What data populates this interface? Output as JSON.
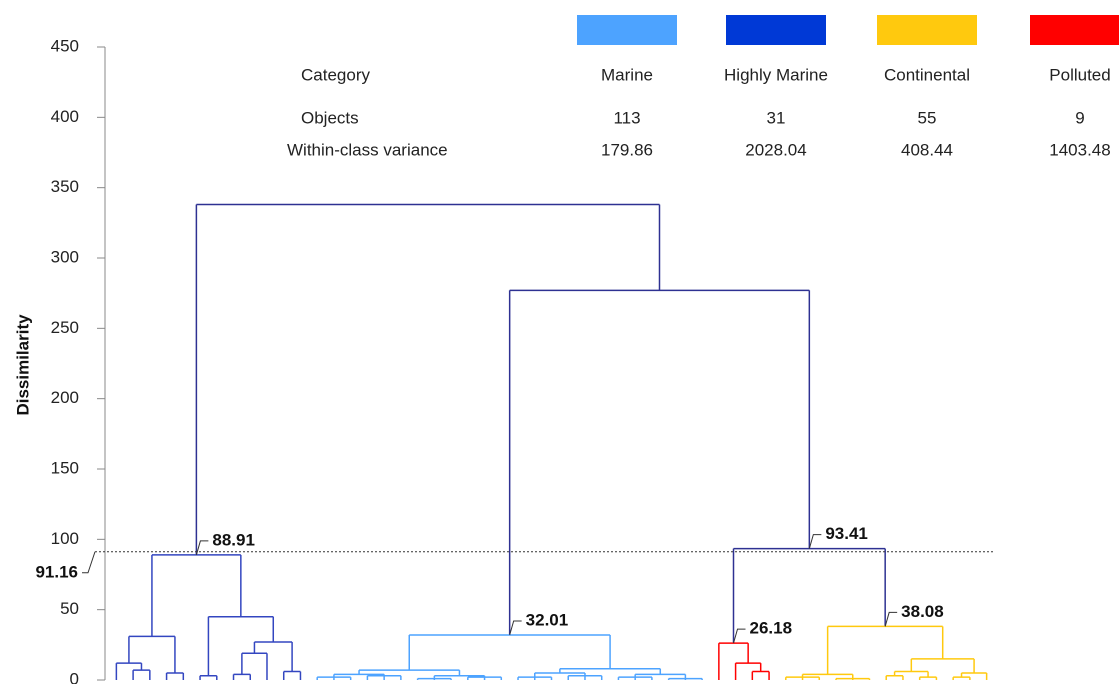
{
  "chart_data": {
    "type": "dendrogram",
    "y_label": "Dissimilarity",
    "ylim": [
      0,
      450
    ],
    "yticks": [
      0,
      50,
      100,
      150,
      200,
      250,
      300,
      350,
      400,
      450
    ],
    "cut": 91.16,
    "legend_table": {
      "header": "Category",
      "rows": [
        "Objects",
        "Within-class variance"
      ]
    },
    "classes": [
      {
        "name": "Marine",
        "color": "#4da3ff",
        "objects": "113",
        "variance": "179.86"
      },
      {
        "name": "Highly Marine",
        "color": "#0039d6",
        "objects": "31",
        "variance": "2028.04"
      },
      {
        "name": "Continental",
        "color": "#ffc90e",
        "objects": "55",
        "variance": "408.44"
      },
      {
        "name": "Polluted",
        "color": "#ff0000",
        "objects": "9",
        "variance": "1403.48"
      }
    ],
    "tree": {
      "height": 338,
      "color": "#2e3192",
      "children": [
        {
          "height": 88.91,
          "color": "#3346c0",
          "label": true,
          "children": [
            {
              "height": 31,
              "children": [
                {
                  "height": 12,
                  "children": [
                    {
                      "height": 0
                    },
                    {
                      "height": 7,
                      "children": [
                        {
                          "height": 0
                        },
                        {
                          "height": 0
                        }
                      ]
                    }
                  ]
                },
                {
                  "height": 5,
                  "children": [
                    {
                      "height": 0
                    },
                    {
                      "height": 0
                    }
                  ]
                }
              ]
            },
            {
              "height": 45,
              "children": [
                {
                  "height": 3,
                  "children": [
                    {
                      "height": 0
                    },
                    {
                      "height": 0
                    }
                  ]
                },
                {
                  "height": 27,
                  "children": [
                    {
                      "height": 19,
                      "children": [
                        {
                          "height": 4,
                          "children": [
                            {
                              "height": 0
                            },
                            {
                              "height": 0
                            }
                          ]
                        },
                        {
                          "height": 0
                        }
                      ]
                    },
                    {
                      "height": 6,
                      "children": [
                        {
                          "height": 0
                        },
                        {
                          "height": 0
                        }
                      ]
                    }
                  ]
                }
              ]
            }
          ]
        },
        {
          "height": 277,
          "children": [
            {
              "height": 32.01,
              "color": "#4da3ff",
              "label": true,
              "children": [
                {
                  "height": 7,
                  "children": [
                    {
                      "height": 4,
                      "children": [
                        {
                          "height": 2,
                          "children": [
                            {
                              "height": 0
                            },
                            {
                              "height": 0
                            },
                            {
                              "height": 0
                            }
                          ]
                        },
                        {
                          "height": 3,
                          "children": [
                            {
                              "height": 0
                            },
                            {
                              "height": 0
                            },
                            {
                              "height": 0
                            }
                          ]
                        }
                      ]
                    },
                    {
                      "height": 3,
                      "children": [
                        {
                          "height": 1,
                          "children": [
                            {
                              "height": 0
                            },
                            {
                              "height": 0
                            },
                            {
                              "height": 0
                            }
                          ]
                        },
                        {
                          "height": 2,
                          "children": [
                            {
                              "height": 0
                            },
                            {
                              "height": 0
                            },
                            {
                              "height": 0
                            }
                          ]
                        }
                      ]
                    }
                  ]
                },
                {
                  "height": 8,
                  "children": [
                    {
                      "height": 5,
                      "children": [
                        {
                          "height": 2,
                          "children": [
                            {
                              "height": 0
                            },
                            {
                              "height": 0
                            },
                            {
                              "height": 0
                            }
                          ]
                        },
                        {
                          "height": 3,
                          "children": [
                            {
                              "height": 0
                            },
                            {
                              "height": 0
                            },
                            {
                              "height": 0
                            }
                          ]
                        }
                      ]
                    },
                    {
                      "height": 4,
                      "children": [
                        {
                          "height": 2,
                          "children": [
                            {
                              "height": 0
                            },
                            {
                              "height": 0
                            },
                            {
                              "height": 0
                            }
                          ]
                        },
                        {
                          "height": 1,
                          "children": [
                            {
                              "height": 0
                            },
                            {
                              "height": 0
                            },
                            {
                              "height": 0
                            }
                          ]
                        }
                      ]
                    }
                  ]
                }
              ]
            },
            {
              "height": 93.41,
              "label": true,
              "children": [
                {
                  "height": 26.18,
                  "color": "#ff0000",
                  "label": true,
                  "children": [
                    {
                      "height": 0
                    },
                    {
                      "height": 12,
                      "children": [
                        {
                          "height": 0
                        },
                        {
                          "height": 6,
                          "children": [
                            {
                              "height": 0
                            },
                            {
                              "height": 0
                            }
                          ]
                        }
                      ]
                    }
                  ]
                },
                {
                  "height": 38.08,
                  "color": "#ffc90e",
                  "label": true,
                  "children": [
                    {
                      "height": 4,
                      "children": [
                        {
                          "height": 2,
                          "children": [
                            {
                              "height": 0
                            },
                            {
                              "height": 0
                            },
                            {
                              "height": 0
                            }
                          ]
                        },
                        {
                          "height": 1,
                          "children": [
                            {
                              "height": 0
                            },
                            {
                              "height": 0
                            },
                            {
                              "height": 0
                            }
                          ]
                        }
                      ]
                    },
                    {
                      "height": 15,
                      "children": [
                        {
                          "height": 6,
                          "children": [
                            {
                              "height": 3,
                              "children": [
                                {
                                  "height": 0
                                },
                                {
                                  "height": 0
                                }
                              ]
                            },
                            {
                              "height": 2,
                              "children": [
                                {
                                  "height": 0
                                },
                                {
                                  "height": 0
                                }
                              ]
                            }
                          ]
                        },
                        {
                          "height": 5,
                          "children": [
                            {
                              "height": 2,
                              "children": [
                                {
                                  "height": 0
                                },
                                {
                                  "height": 0
                                }
                              ]
                            },
                            {
                              "height": 0
                            }
                          ]
                        }
                      ]
                    }
                  ]
                }
              ]
            }
          ]
        }
      ]
    }
  }
}
